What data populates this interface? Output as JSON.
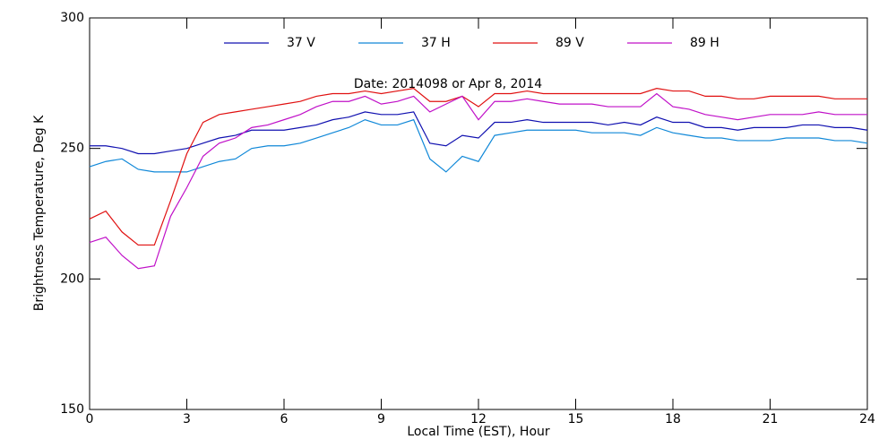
{
  "chart_data": {
    "type": "line",
    "title": "Date: 2014098     or     Apr  8, 2014",
    "xlabel": "Local Time (EST), Hour",
    "ylabel": "Brightness Temperature, Deg K",
    "x": [
      0,
      0.5,
      1,
      1.5,
      2,
      2.5,
      3,
      3.5,
      4,
      4.5,
      5,
      5.5,
      6,
      6.5,
      7,
      7.5,
      8,
      8.5,
      9,
      9.5,
      10,
      10.5,
      11,
      11.5,
      12,
      12.5,
      13,
      13.5,
      14,
      14.5,
      15,
      15.5,
      16,
      16.5,
      17,
      17.5,
      18,
      18.5,
      19,
      19.5,
      20,
      20.5,
      21,
      21.5,
      22,
      22.5,
      23,
      23.5,
      24
    ],
    "series": [
      {
        "name": "37 V",
        "color": "#1010b0",
        "values": [
          251,
          251,
          250,
          248,
          248,
          249,
          250,
          252,
          254,
          255,
          257,
          257,
          257,
          258,
          259,
          261,
          262,
          264,
          263,
          263,
          264,
          252,
          251,
          255,
          254,
          260,
          260,
          261,
          260,
          260,
          260,
          260,
          259,
          260,
          259,
          262,
          260,
          260,
          258,
          258,
          257,
          258,
          258,
          258,
          259,
          259,
          258,
          258,
          257
        ]
      },
      {
        "name": "37 H",
        "color": "#1088d8",
        "values": [
          243,
          245,
          246,
          242,
          241,
          241,
          241,
          243,
          245,
          246,
          250,
          251,
          251,
          252,
          254,
          256,
          258,
          261,
          259,
          259,
          261,
          246,
          241,
          247,
          245,
          255,
          256,
          257,
          257,
          257,
          257,
          256,
          256,
          256,
          255,
          258,
          256,
          255,
          254,
          254,
          253,
          253,
          253,
          254,
          254,
          254,
          253,
          253,
          252
        ]
      },
      {
        "name": "89 V",
        "color": "#e01010",
        "values": [
          223,
          226,
          218,
          213,
          213,
          230,
          248,
          260,
          263,
          264,
          265,
          266,
          267,
          268,
          270,
          271,
          271,
          272,
          271,
          272,
          273,
          268,
          268,
          270,
          266,
          271,
          271,
          272,
          271,
          271,
          271,
          271,
          271,
          271,
          271,
          273,
          272,
          272,
          270,
          270,
          269,
          269,
          270,
          270,
          270,
          270,
          269,
          269,
          269
        ]
      },
      {
        "name": "89 H",
        "color": "#c010c8",
        "values": [
          214,
          216,
          209,
          204,
          205,
          224,
          235,
          247,
          252,
          254,
          258,
          259,
          261,
          263,
          266,
          268,
          268,
          270,
          267,
          268,
          270,
          264,
          267,
          270,
          261,
          268,
          268,
          269,
          268,
          267,
          267,
          267,
          266,
          266,
          266,
          271,
          266,
          265,
          263,
          262,
          261,
          262,
          263,
          263,
          263,
          264,
          263,
          263,
          263
        ]
      }
    ],
    "xlim": [
      0,
      24
    ],
    "xticks": [
      0,
      3,
      6,
      9,
      12,
      15,
      18,
      21,
      24
    ],
    "ylim": [
      150,
      300
    ],
    "yticks": [
      150,
      200,
      250,
      300
    ],
    "legend": "top"
  }
}
